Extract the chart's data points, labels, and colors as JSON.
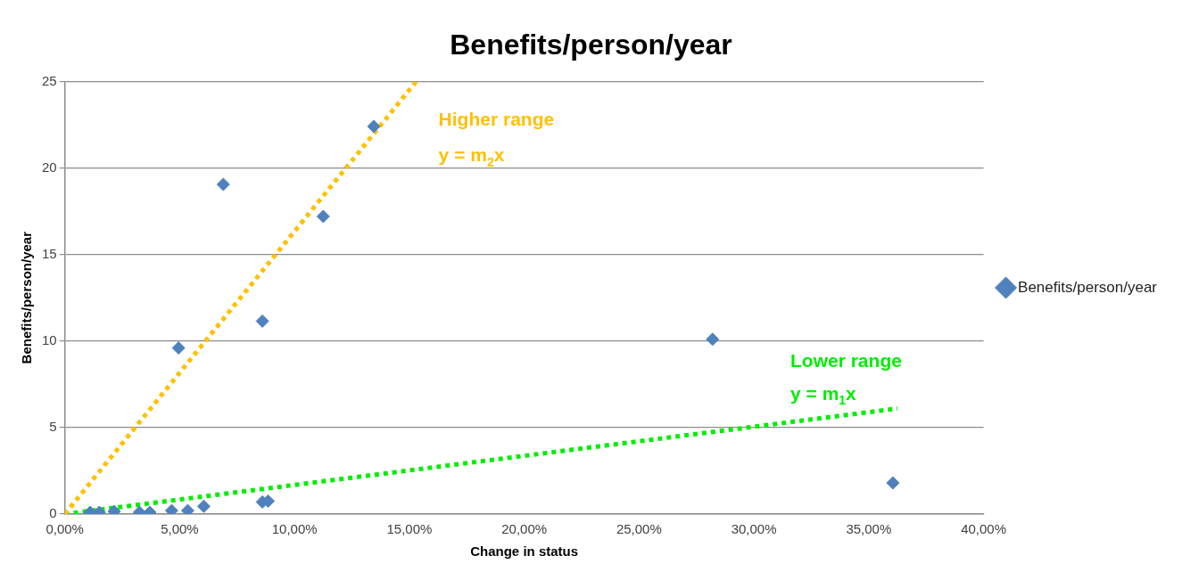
{
  "chart_data": {
    "type": "scatter",
    "title": "Benefits/person/year",
    "xlabel": "Change in status",
    "ylabel": "Benefits/person/year",
    "xlim": [
      0,
      40
    ],
    "xticks": [
      {
        "value": 0,
        "label": "0,00%"
      },
      {
        "value": 5,
        "label": "5,00%"
      },
      {
        "value": 10,
        "label": "10,00%"
      },
      {
        "value": 15,
        "label": "15,00%"
      },
      {
        "value": 20,
        "label": "20,00%"
      },
      {
        "value": 25,
        "label": "25,00%"
      },
      {
        "value": 30,
        "label": "30,00%"
      },
      {
        "value": 35,
        "label": "35,00%"
      },
      {
        "value": 40,
        "label": "40,00%"
      }
    ],
    "ylim": [
      0,
      25
    ],
    "yticks": [
      0,
      5,
      10,
      15,
      20,
      25
    ],
    "grid": "y",
    "legend": "right",
    "marker": "diamond",
    "series": [
      {
        "name": "Benefits/person/year",
        "color": "#4f81bd",
        "x": [
          1.1,
          1.5,
          2.15,
          3.25,
          3.7,
          4.65,
          5.35,
          6.05,
          8.6,
          8.85,
          4.95,
          6.9,
          8.6,
          11.25,
          13.45,
          28.2,
          36.05
        ],
        "values": [
          0.1,
          0.1,
          0.15,
          0.1,
          0.1,
          0.2,
          0.2,
          0.45,
          0.7,
          0.75,
          9.6,
          19.05,
          11.15,
          17.2,
          22.4,
          10.1,
          1.8
        ]
      },
      {
        "color": "#ffc000",
        "type": "line",
        "line_style": "dotted",
        "marker": "none",
        "x": [
          0,
          15.3
        ],
        "values": [
          0,
          25
        ]
      },
      {
        "color": "#00ee00",
        "type": "line",
        "line_style": "dotted",
        "marker": "none",
        "x": [
          0,
          36.25
        ],
        "values": [
          0,
          6.1
        ]
      }
    ],
    "annotations": [
      "Higher range",
      "y = m$_{2}$x",
      "Lower range",
      "y = m$_{1}$x"
    ]
  }
}
